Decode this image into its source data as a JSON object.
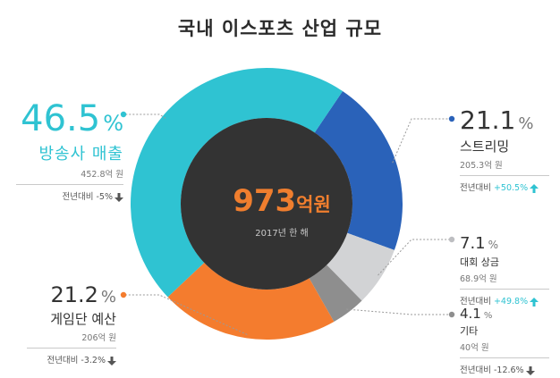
{
  "chart_data": {
    "type": "pie",
    "title": "국내 이스포츠 산업 규모",
    "center": {
      "value": "973",
      "unit": "억원",
      "caption": "2017년 한 해"
    },
    "slices": [
      {
        "name": "스트리밍",
        "percent": 21.1,
        "percent_label": "21.1",
        "amount": "205.3억 원",
        "yoy_label": "전년대비",
        "yoy_value": "+50.5%",
        "direction": "up",
        "color": "#2a62b9"
      },
      {
        "name": "대회 상금",
        "percent": 7.1,
        "percent_label": "7.1",
        "amount": "68.9억 원",
        "yoy_label": "전년대비",
        "yoy_value": "+49.8%",
        "direction": "up",
        "color": "#d2d3d5"
      },
      {
        "name": "기타",
        "percent": 4.1,
        "percent_label": "4.1",
        "amount": "40억 원",
        "yoy_label": "전년대비",
        "yoy_value": "-12.6%",
        "direction": "down",
        "color": "#8e8e8e"
      },
      {
        "name": "게임단 예산",
        "percent": 21.2,
        "percent_label": "21.2",
        "amount": "206억 원",
        "yoy_label": "전년대비",
        "yoy_value": "-3.2%",
        "direction": "down",
        "color": "#f47c2e"
      },
      {
        "name": "방송사 매출",
        "percent": 46.5,
        "percent_label": "46.5",
        "amount": "452.8억 원",
        "yoy_label": "전년대비",
        "yoy_value": "-5%",
        "direction": "down",
        "color": "#2fc3d2"
      }
    ],
    "percent_sign": "%",
    "colors": {
      "center_fill": "#333333",
      "center_text": "#f07e2e",
      "up_arrow": "#2fc3d2",
      "down_arrow": "#555555",
      "connector": "#9a9a9a"
    }
  }
}
